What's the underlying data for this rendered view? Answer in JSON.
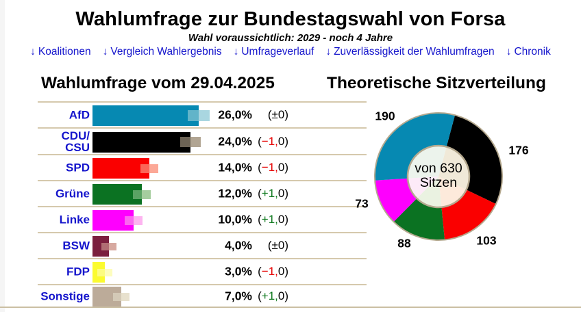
{
  "header": {
    "title": "Wahlumfrage zur Bundestagswahl von Forsa",
    "subtitle": "Wahl voraussichtlich: 2029 - noch 4 Jahre",
    "nav_arrow": "↓",
    "nav": [
      {
        "label": "Koalitionen"
      },
      {
        "label": "Vergleich Wahlergebnis"
      },
      {
        "label": "Umfrageverlauf"
      },
      {
        "label": "Zuverlässigkeit der Wahlumfragen"
      },
      {
        "label": "Chronik"
      }
    ]
  },
  "poll": {
    "heading": "Wahlumfrage vom 29.04.2025",
    "rows": [
      {
        "party_lines": [
          "AfD"
        ],
        "value": 26.0,
        "value_label": "26,0%",
        "change_pre": "(",
        "change_colored": "±0",
        "change_post": ")",
        "change_color": "#000000",
        "color": "#0689b2",
        "mid": "#62b4c9",
        "light": "#a9d6e0",
        "sq": 16
      },
      {
        "party_lines": [
          "CDU/",
          "CSU"
        ],
        "value": 24.0,
        "value_label": "24,0%",
        "change_pre": "(",
        "change_colored": "−1,",
        "change_post": "0)",
        "change_color": "#e60000",
        "color": "#000000",
        "mid": "#6c6355",
        "light": "#b1a593",
        "sq": 15
      },
      {
        "party_lines": [
          "SPD"
        ],
        "value": 14.0,
        "value_label": "14,0%",
        "change_pre": "(",
        "change_colored": "−1,",
        "change_post": "0)",
        "change_color": "#e60000",
        "color": "#fa0000",
        "mid": "#fb6557",
        "light": "#fca897",
        "sq": 13
      },
      {
        "party_lines": [
          "Grüne"
        ],
        "value": 12.0,
        "value_label": "12,0%",
        "change_pre": "(",
        "change_colored": "+1,",
        "change_post": "0)",
        "change_color": "#107a20",
        "color": "#0b7222",
        "mid": "#5aa363",
        "light": "#a5cd9e",
        "sq": 13
      },
      {
        "party_lines": [
          "Linke"
        ],
        "value": 10.0,
        "value_label": "10,0%",
        "change_pre": "(",
        "change_colored": "+1,",
        "change_post": "0)",
        "change_color": "#107a20",
        "color": "#fe00fe",
        "mid": "#fb66f0",
        "light": "#fdb4f0",
        "sq": 13
      },
      {
        "party_lines": [
          "BSW"
        ],
        "value": 4.0,
        "value_label": "4,0%",
        "change_pre": "(",
        "change_colored": "±0",
        "change_post": ")",
        "change_color": "#000000",
        "color": "#7b1f3e",
        "mid": "#b06d73",
        "light": "#d7a9a0",
        "sq": 11
      },
      {
        "party_lines": [
          "FDP"
        ],
        "value": 3.0,
        "value_label": "3,0%",
        "change_pre": "(",
        "change_colored": "−1,",
        "change_post": "0)",
        "change_color": "#e60000",
        "color": "#fbfb2f",
        "mid": "#fcfc80",
        "light": "#fdfdbe",
        "sq": 11
      },
      {
        "party_lines": [
          "Sonstige"
        ],
        "value": 7.0,
        "value_label": "7,0%",
        "change_pre": "(",
        "change_colored": "+1,",
        "change_post": "0)",
        "change_color": "#107a20",
        "color": "#bcab99",
        "mid": "#d3c9b6",
        "light": "#e8e1ce",
        "sq": 12
      }
    ]
  },
  "seats": {
    "heading": "Theoretische Sitzverteilung",
    "center_line1": "von 630",
    "center_line2": "Sitzen",
    "total": 630,
    "start_angle_deg": 15,
    "border_color": "#b5a98f",
    "segments": [
      {
        "party": "CDU/CSU",
        "seats": 176,
        "label": "176",
        "color": "#000000",
        "inner": "#f0e9d8"
      },
      {
        "party": "SPD",
        "seats": 103,
        "label": "103",
        "color": "#fa0000",
        "inner": "#fdeadb"
      },
      {
        "party": "Grüne",
        "seats": 88,
        "label": "88",
        "color": "#0b7222",
        "inner": "#eaf2e1"
      },
      {
        "party": "Linke",
        "seats": 73,
        "label": "73",
        "color": "#fe00fe",
        "inner": "#fdeaf8"
      },
      {
        "party": "AfD",
        "seats": 190,
        "label": "190",
        "color": "#0689b2",
        "inner": "#ecf3ec"
      }
    ]
  },
  "colors": {
    "link_blue": "#1515cc",
    "party_label_blue": "#1515cc",
    "separator": "#d5c9ad",
    "bottom_rule": "#cbbfa3"
  },
  "chart_data": [
    {
      "type": "bar",
      "orientation": "horizontal",
      "title": "Wahlumfrage vom 29.04.2025",
      "categories": [
        "AfD",
        "CDU/CSU",
        "SPD",
        "Grüne",
        "Linke",
        "BSW",
        "FDP",
        "Sonstige"
      ],
      "values": [
        26.0,
        24.0,
        14.0,
        12.0,
        10.0,
        4.0,
        3.0,
        7.0
      ],
      "changes": [
        0,
        -1.0,
        -1.0,
        1.0,
        1.0,
        0,
        -1.0,
        1.0
      ],
      "value_labels": [
        "26,0%",
        "24,0%",
        "14,0%",
        "12,0%",
        "10,0%",
        "4,0%",
        "3,0%",
        "7,0%"
      ],
      "change_labels": [
        "(±0)",
        "(−1,0)",
        "(−1,0)",
        "(+1,0)",
        "(+1,0)",
        "(±0)",
        "(−1,0)",
        "(+1,0)"
      ],
      "unit": "%",
      "xlim": [
        0,
        30
      ],
      "colors": [
        "#0689b2",
        "#000000",
        "#fa0000",
        "#0b7222",
        "#fe00fe",
        "#7b1f3e",
        "#fbfb2f",
        "#bcab99"
      ],
      "grid": false,
      "legend": false
    },
    {
      "type": "pie",
      "donut": true,
      "title": "Theoretische Sitzverteilung",
      "labels": [
        "CDU/CSU",
        "SPD",
        "Grüne",
        "Linke",
        "AfD"
      ],
      "values": [
        176,
        103,
        88,
        73,
        190
      ],
      "colors": [
        "#000000",
        "#fa0000",
        "#0b7222",
        "#fe00fe",
        "#0689b2"
      ],
      "total": 630,
      "center_text": "von 630 Sitzen",
      "start_angle_deg": 15,
      "direction": "clockwise",
      "legend": false
    }
  ]
}
